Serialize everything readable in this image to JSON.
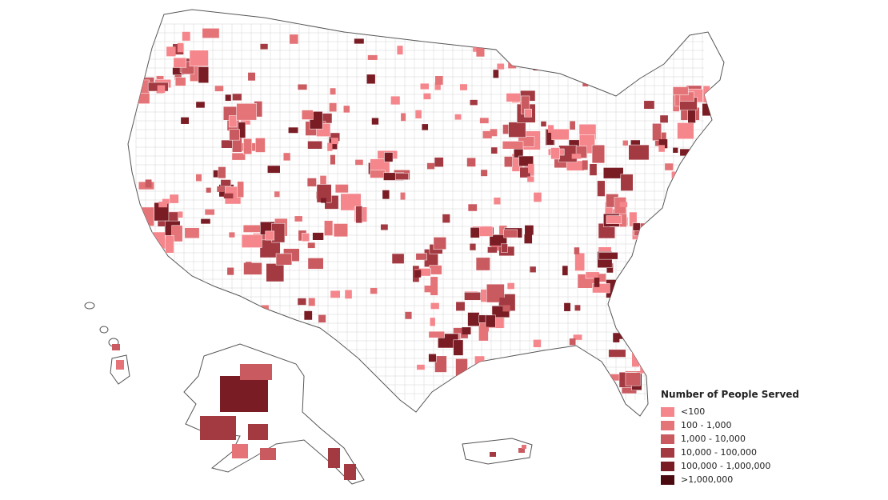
{
  "legend": {
    "title": "Number of People Served",
    "classes": [
      {
        "label": "<100",
        "color": "#f4868c"
      },
      {
        "label": "100 - 1,000",
        "color": "#e47478"
      },
      {
        "label": "1,000 - 10,000",
        "color": "#c95a60"
      },
      {
        "label": "10,000 - 100,000",
        "color": "#a33a42"
      },
      {
        "label": "100,000 - 1,000,000",
        "color": "#7a1c24"
      },
      {
        "label": ">1,000,000",
        "color": "#4a0a10"
      }
    ]
  },
  "map": {
    "outline_color": "#555555",
    "county_line_color": "#bbbbbb",
    "regions": [
      "contiguous-us",
      "alaska",
      "hawaii",
      "puerto-rico"
    ]
  }
}
